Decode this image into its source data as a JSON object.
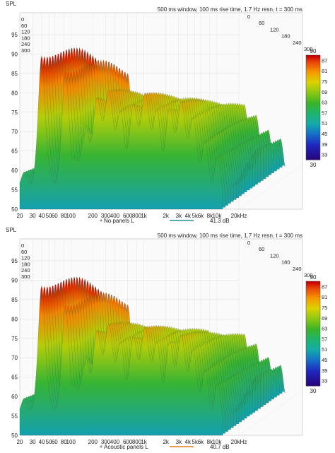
{
  "chart_data": [
    {
      "type": "waterfall",
      "ylabel": "SPL",
      "header": "500 ms window, 100 ms rise time,  1.7 Hz resn, t = 300 ms",
      "y_ticks": [
        "95",
        "90",
        "85",
        "80",
        "75",
        "70",
        "65",
        "60",
        "55",
        "50"
      ],
      "ylim": [
        50,
        97
      ],
      "x_ticks": [
        "20",
        "30",
        "40",
        "50",
        "60",
        "80",
        "100",
        "200",
        "300",
        "400",
        "600",
        "800",
        "1k",
        "2k",
        "3k",
        "4k",
        "5k",
        "6k",
        "8k",
        "10k",
        "20kHz"
      ],
      "xlim_hz": [
        20,
        20000
      ],
      "time_ticks_ms": [
        "0",
        "60",
        "120",
        "180",
        "240",
        "300"
      ],
      "colorbar": {
        "max": "90",
        "ticks": [
          "87",
          "81",
          "75",
          "69",
          "63",
          "57",
          "51",
          "45",
          "39",
          "33"
        ],
        "min": "30"
      },
      "legend": {
        "name": "No panels L",
        "value": "41.3 dB",
        "color": "#1a8fa0"
      },
      "peaks_hz_db": [
        [
          40,
          91
        ],
        [
          85,
          87
        ],
        [
          300,
          77
        ],
        [
          1000,
          76
        ],
        [
          3000,
          74
        ]
      ]
    },
    {
      "type": "waterfall",
      "ylabel": "SPL",
      "header": "500 ms window, 100 ms rise time,  1.7 Hz resn, t = 300 ms",
      "y_ticks": [
        "95",
        "90",
        "85",
        "80",
        "75",
        "70",
        "65",
        "60",
        "55",
        "50"
      ],
      "ylim": [
        50,
        97
      ],
      "x_ticks": [
        "20",
        "30",
        "40",
        "50",
        "60",
        "80",
        "100",
        "200",
        "300",
        "400",
        "600",
        "800",
        "1k",
        "2k",
        "3k",
        "4k",
        "5k",
        "6k",
        "8k",
        "10k",
        "20kHz"
      ],
      "xlim_hz": [
        20,
        20000
      ],
      "time_ticks_ms": [
        "0",
        "60",
        "120",
        "180",
        "240",
        "300"
      ],
      "colorbar": {
        "max": "90",
        "ticks": [
          "87",
          "81",
          "75",
          "69",
          "63",
          "57",
          "51",
          "45",
          "39",
          "33"
        ],
        "min": "30"
      },
      "legend": {
        "name": "Acoustic panels L",
        "value": "40.7 dB",
        "color": "#e07a1a"
      },
      "peaks_hz_db": [
        [
          40,
          90
        ],
        [
          85,
          85
        ],
        [
          300,
          75
        ],
        [
          1000,
          74
        ],
        [
          3000,
          72
        ]
      ]
    }
  ]
}
